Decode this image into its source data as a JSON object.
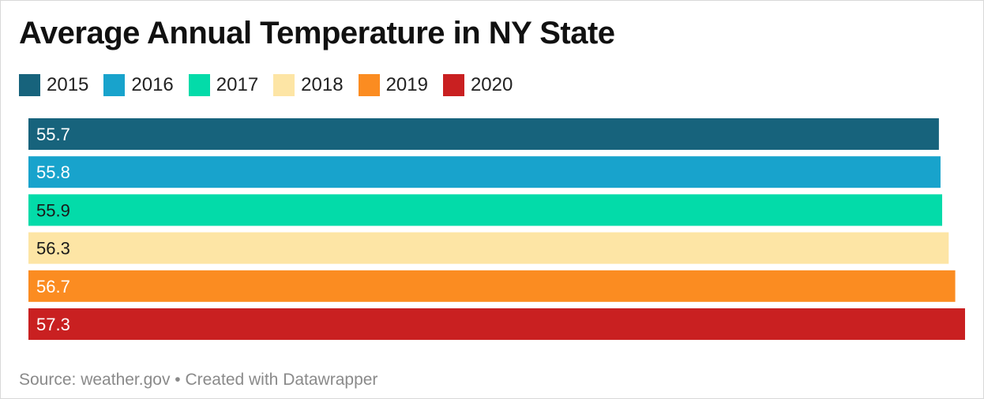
{
  "chart_data": {
    "type": "bar",
    "orientation": "horizontal",
    "title": "Average Annual Temperature in NY State",
    "categories": [
      "2015",
      "2016",
      "2017",
      "2018",
      "2019",
      "2020"
    ],
    "values": [
      55.7,
      55.8,
      55.9,
      56.3,
      56.7,
      57.3
    ],
    "value_labels": [
      "55.7",
      "55.8",
      "55.9",
      "56.3",
      "56.7",
      "57.3"
    ],
    "colors": [
      "#17637c",
      "#18a3cc",
      "#03dba9",
      "#fde5a5",
      "#fb8c21",
      "#c92021"
    ],
    "label_colors": [
      "#ffffff",
      "#ffffff",
      "#1a1a1a",
      "#1a1a1a",
      "#ffffff",
      "#ffffff"
    ],
    "xlim": [
      0,
      57.3
    ],
    "grid": false,
    "legend": "top-left",
    "source": "Source: weather.gov • Created with Datawrapper"
  }
}
